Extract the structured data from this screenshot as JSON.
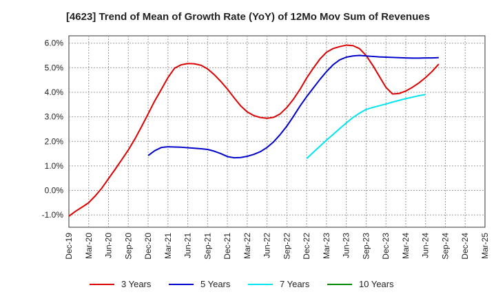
{
  "chart_data": {
    "type": "line",
    "title": "[4623]  Trend of Mean of Growth Rate (YoY) of 12Mo Mov Sum of Revenues",
    "xlabel": "",
    "ylabel": "",
    "ylim": [
      -1.5,
      6.3
    ],
    "yticks": [
      -1.0,
      0.0,
      1.0,
      2.0,
      3.0,
      4.0,
      5.0,
      6.0
    ],
    "ytick_labels": [
      "-1.0%",
      "0.0%",
      "1.0%",
      "2.0%",
      "3.0%",
      "4.0%",
      "5.0%",
      "6.0%"
    ],
    "xtick_labels": [
      "Dec-19",
      "Mar-20",
      "Jun-20",
      "Sep-20",
      "Dec-20",
      "Mar-21",
      "Jun-21",
      "Sep-21",
      "Dec-21",
      "Mar-22",
      "Jun-22",
      "Sep-22",
      "Dec-22",
      "Mar-23",
      "Jun-23",
      "Sep-23",
      "Dec-23",
      "Mar-24",
      "Jun-24",
      "Sep-24",
      "Dec-24",
      "Mar-25"
    ],
    "grid": true,
    "legend_position": "bottom",
    "series": [
      {
        "name": "3 Years",
        "color": "#dd0000",
        "start_index": 0,
        "values": [
          -1.05,
          -0.85,
          -0.68,
          -0.5,
          -0.22,
          0.1,
          0.48,
          0.86,
          1.25,
          1.65,
          2.1,
          2.6,
          3.12,
          3.65,
          4.12,
          4.6,
          4.98,
          5.12,
          5.17,
          5.16,
          5.1,
          4.95,
          4.72,
          4.44,
          4.13,
          3.78,
          3.45,
          3.2,
          3.05,
          2.97,
          2.94,
          2.98,
          3.12,
          3.38,
          3.72,
          4.12,
          4.58,
          4.98,
          5.35,
          5.63,
          5.78,
          5.86,
          5.92,
          5.9,
          5.78,
          5.5,
          5.1,
          4.65,
          4.2,
          3.93,
          3.95,
          4.05,
          4.2,
          4.38,
          4.6,
          4.85,
          5.15
        ]
      },
      {
        "name": "5 Years",
        "color": "#0000cc",
        "start_index": 12,
        "values": [
          1.42,
          1.62,
          1.75,
          1.78,
          1.77,
          1.76,
          1.74,
          1.72,
          1.7,
          1.67,
          1.6,
          1.5,
          1.38,
          1.33,
          1.34,
          1.39,
          1.47,
          1.58,
          1.75,
          1.98,
          2.28,
          2.62,
          3.02,
          3.44,
          3.82,
          4.17,
          4.52,
          4.84,
          5.12,
          5.32,
          5.43,
          5.48,
          5.5,
          5.48,
          5.46,
          5.44,
          5.43,
          5.42,
          5.41,
          5.4,
          5.39,
          5.39,
          5.4,
          5.4,
          5.41
        ]
      },
      {
        "name": "7 Years",
        "color": "#00e5ee",
        "start_index": 36,
        "values": [
          1.3,
          1.55,
          1.8,
          2.05,
          2.28,
          2.52,
          2.75,
          2.97,
          3.15,
          3.3,
          3.38,
          3.45,
          3.52,
          3.6,
          3.67,
          3.74,
          3.8,
          3.86,
          3.91
        ]
      },
      {
        "name": "10 Years",
        "color": "#008800",
        "start_index": 0,
        "values": []
      }
    ]
  }
}
